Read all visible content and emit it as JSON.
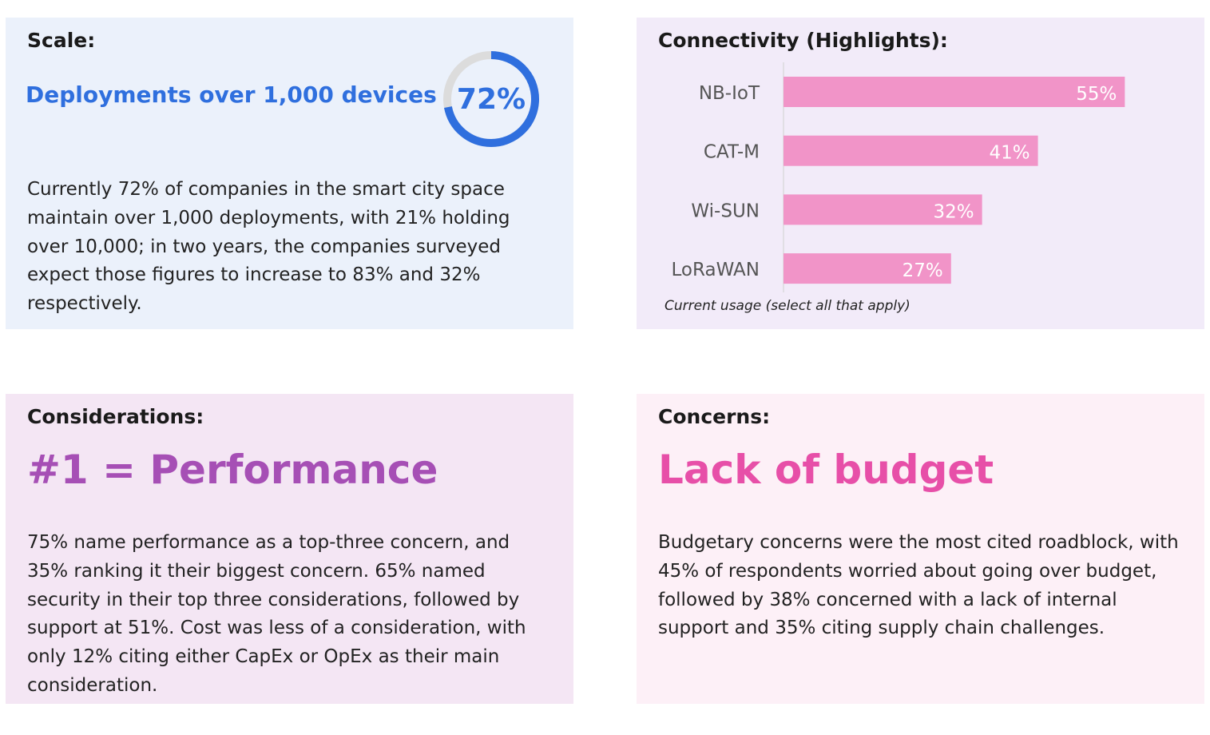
{
  "scale": {
    "heading": "Scale:",
    "highlight": "Deployments over 1,000 devices",
    "donut_value": "72%",
    "donut_fraction": 0.72,
    "accent": "#2f6fde",
    "track": "#dcdcdc",
    "body": "Currently 72% of companies in the smart city space maintain over 1,000 deployments, with 21% holding over 10,000; in two years, the companies surveyed expect those figures to increase to 83% and 32% respectively."
  },
  "connectivity": {
    "heading": "Connectivity (Highlights):",
    "caption": "Current usage (select all that apply)"
  },
  "chart_data": {
    "type": "bar",
    "orientation": "horizontal",
    "categories": [
      "NB-IoT",
      "CAT-M",
      "Wi-SUN",
      "LoRaWAN"
    ],
    "values": [
      55,
      41,
      32,
      27
    ],
    "data_labels": [
      "55%",
      "41%",
      "32%",
      "27%"
    ],
    "bar_color": "#f194c8",
    "unit": "%"
  },
  "considerations": {
    "heading": "Considerations:",
    "highlight": "#1 = Performance",
    "color": "#a64fb5",
    "body": "75% name performance as a top-three concern, and 35% ranking it their biggest concern. 65% named security in their top three considerations, followed by support at 51%. Cost was less of a consideration, with only 12% citing either CapEx or OpEx as their main consideration."
  },
  "concerns": {
    "heading": "Concerns:",
    "highlight": "Lack of budget",
    "color": "#e74fa8",
    "body": "Budgetary concerns were the most cited roadblock, with 45% of respondents worried about going over budget, followed by 38% concerned with a lack of internal support and 35% citing supply chain challenges."
  }
}
